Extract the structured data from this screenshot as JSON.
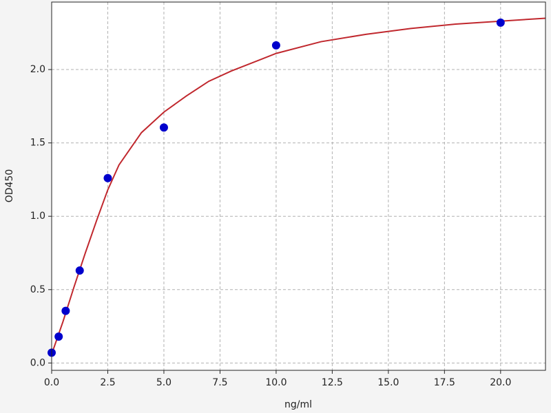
{
  "chart_data": {
    "type": "scatter",
    "x_label": "ng/ml",
    "y_label": "OD450",
    "xlim": [
      0,
      22
    ],
    "ylim": [
      -0.05,
      2.46
    ],
    "xticks": [
      {
        "value": 0,
        "label": "0.0"
      },
      {
        "value": 2.5,
        "label": "2.5"
      },
      {
        "value": 5,
        "label": "5.0"
      },
      {
        "value": 7.5,
        "label": "7.5"
      },
      {
        "value": 10,
        "label": "10.0"
      },
      {
        "value": 12.5,
        "label": "12.5"
      },
      {
        "value": 15,
        "label": "15.0"
      },
      {
        "value": 17.5,
        "label": "17.5"
      },
      {
        "value": 20,
        "label": "20.0"
      }
    ],
    "yticks": [
      {
        "value": 0,
        "label": "0.0"
      },
      {
        "value": 0.5,
        "label": "0.5"
      },
      {
        "value": 1,
        "label": "1.0"
      },
      {
        "value": 1.5,
        "label": "1.5"
      },
      {
        "value": 2,
        "label": "2.0"
      }
    ],
    "grid": true,
    "series": [
      {
        "mode": "line",
        "color": "#c0272d",
        "x": [
          0,
          0.5,
          1,
          1.5,
          2,
          2.5,
          3,
          4,
          5,
          6,
          7,
          8,
          10,
          12,
          14,
          16,
          18,
          20,
          22
        ],
        "values": [
          0.06,
          0.28,
          0.52,
          0.75,
          0.97,
          1.18,
          1.35,
          1.57,
          1.71,
          1.82,
          1.92,
          1.99,
          2.11,
          2.19,
          2.24,
          2.28,
          2.31,
          2.33,
          2.35
        ]
      },
      {
        "mode": "markers",
        "color": "#0000cc",
        "x": [
          0,
          0.3125,
          0.625,
          1.25,
          2.5,
          5,
          10,
          20
        ],
        "values": [
          0.07,
          0.18,
          0.355,
          0.63,
          1.26,
          1.605,
          2.165,
          2.32
        ]
      }
    ]
  }
}
